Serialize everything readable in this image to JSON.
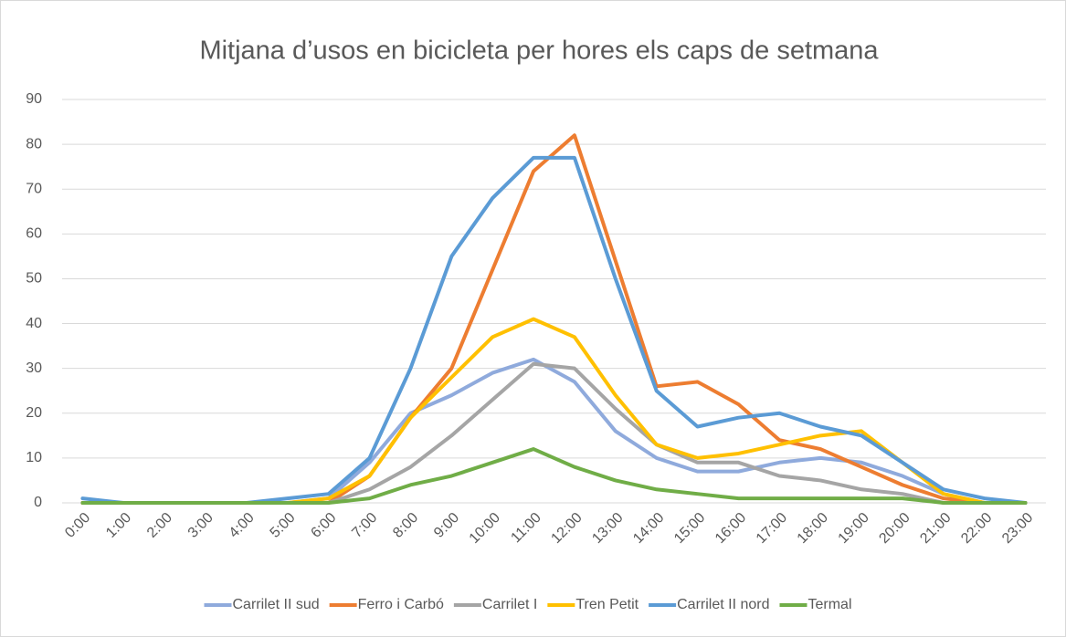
{
  "chart_data": {
    "type": "line",
    "title": "Mitjana d’usos en bicicleta per hores els caps de setmana",
    "categories": [
      "0:00",
      "1:00",
      "2:00",
      "3:00",
      "4:00",
      "5:00",
      "6:00",
      "7:00",
      "8:00",
      "9:00",
      "10:00",
      "11:00",
      "12:00",
      "13:00",
      "14:00",
      "15:00",
      "16:00",
      "17:00",
      "18:00",
      "19:00",
      "20:00",
      "21:00",
      "22:00",
      "23:00"
    ],
    "series": [
      {
        "name": "Carrilet II sud",
        "color": "#8faadc",
        "values": [
          0,
          0,
          0,
          0,
          0,
          0,
          1,
          9,
          20,
          24,
          29,
          32,
          27,
          16,
          10,
          7,
          7,
          9,
          10,
          9,
          6,
          2,
          0,
          0
        ]
      },
      {
        "name": "Ferro i Carbó",
        "color": "#ed7d31",
        "values": [
          0,
          0,
          0,
          0,
          0,
          0,
          0,
          6,
          19,
          30,
          52,
          74,
          82,
          54,
          26,
          27,
          22,
          14,
          12,
          8,
          4,
          1,
          0,
          0
        ]
      },
      {
        "name": "Carrilet I",
        "color": "#a5a5a5",
        "values": [
          0,
          0,
          0,
          0,
          0,
          0,
          0,
          3,
          8,
          15,
          23,
          31,
          30,
          21,
          13,
          9,
          9,
          6,
          5,
          3,
          2,
          0,
          0,
          0
        ]
      },
      {
        "name": "Tren Petit",
        "color": "#ffc000",
        "values": [
          0,
          0,
          0,
          0,
          0,
          0,
          1,
          6,
          19,
          28,
          37,
          41,
          37,
          24,
          13,
          10,
          11,
          13,
          15,
          16,
          9,
          2,
          0,
          0
        ]
      },
      {
        "name": "Carrilet II nord",
        "color": "#5b9bd5",
        "values": [
          1,
          0,
          0,
          0,
          0,
          1,
          2,
          10,
          30,
          55,
          68,
          77,
          77,
          50,
          25,
          17,
          19,
          20,
          17,
          15,
          9,
          3,
          1,
          0
        ]
      },
      {
        "name": "Termal",
        "color": "#70ad47",
        "values": [
          0,
          0,
          0,
          0,
          0,
          0,
          0,
          1,
          4,
          6,
          9,
          12,
          8,
          5,
          3,
          2,
          1,
          1,
          1,
          1,
          1,
          0,
          0,
          0
        ]
      }
    ],
    "ylim": [
      0,
      90
    ],
    "yticks": [
      0,
      10,
      20,
      30,
      40,
      50,
      60,
      70,
      80,
      90
    ],
    "grid": true,
    "legend": "bottom"
  }
}
